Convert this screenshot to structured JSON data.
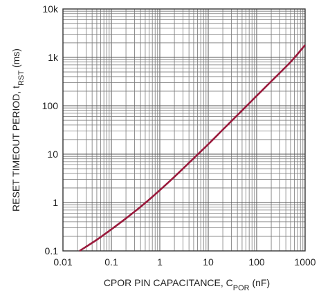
{
  "chart_data": {
    "type": "line",
    "title": "",
    "xlabel": "CPOR PIN CAPACITANCE, C",
    "xlabel_sub": "POR",
    "xlabel_unit": " (nF)",
    "ylabel": "RESET TIMEOUT PERIOD, t",
    "ylabel_sub": "RST",
    "ylabel_unit": " (ms)",
    "x_scale": "log",
    "y_scale": "log",
    "xlim": [
      0.01,
      1000
    ],
    "ylim": [
      0.1,
      10000
    ],
    "x_ticks": [
      0.01,
      0.1,
      1,
      10,
      100,
      1000
    ],
    "x_tick_labels": [
      "0.01",
      "0.1",
      "1",
      "10",
      "100",
      "1000"
    ],
    "y_ticks": [
      0.1,
      1,
      10,
      100,
      1000,
      10000
    ],
    "y_tick_labels": [
      "0.1",
      "1",
      "10",
      "100",
      "1k",
      "10k"
    ],
    "grid": true,
    "line_color": "#9a1a3c",
    "series": [
      {
        "x": [
          0.022,
          0.05,
          0.1,
          0.2,
          0.5,
          1,
          2,
          5,
          10,
          20,
          50,
          100,
          200,
          500,
          1000
        ],
        "y": [
          0.1,
          0.17,
          0.28,
          0.47,
          0.98,
          1.8,
          3.4,
          8.2,
          16,
          32,
          80,
          160,
          320,
          800,
          1800
        ]
      }
    ]
  }
}
